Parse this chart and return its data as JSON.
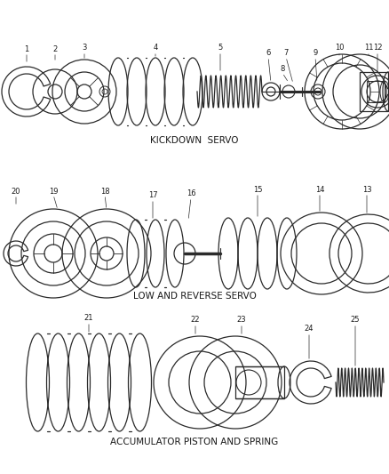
{
  "bg_color": "#ffffff",
  "line_color": "#2a2a2a",
  "text_color": "#1a1a1a",
  "figw": 4.38,
  "figh": 5.33,
  "dpi": 100,
  "section1_label": "KICKDOWN  SERVO",
  "section2_label": "LOW AND REVERSE SERVO",
  "section3_label": "ACCUMULATOR PISTON AND SPRING"
}
